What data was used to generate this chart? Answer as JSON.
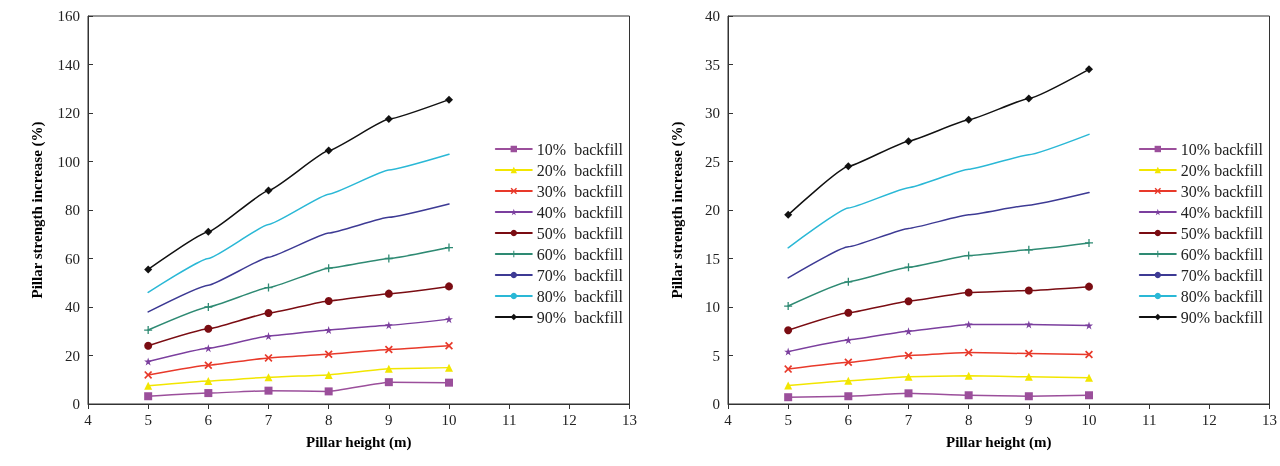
{
  "chart_data": [
    {
      "type": "line",
      "xlabel": "Pillar height (m)",
      "ylabel": "Pillar strength increase (%)",
      "xlim": [
        4,
        13
      ],
      "xticks": [
        4,
        5,
        6,
        7,
        8,
        9,
        10,
        11,
        12,
        13
      ],
      "ylim": [
        0,
        160
      ],
      "yticks": [
        0,
        20,
        40,
        60,
        80,
        100,
        120,
        140,
        160
      ],
      "grid": false,
      "legend": "right",
      "line_style": "solid",
      "x": [
        5,
        6,
        7,
        8,
        9,
        10
      ],
      "series": [
        {
          "name": "10%  backfill",
          "color": "#9b4f9b",
          "marker": "square",
          "values": [
            3.2,
            4.5,
            5.5,
            5.2,
            9,
            8.8
          ]
        },
        {
          "name": "20%  backfill",
          "color": "#f2e600",
          "marker": "triangle",
          "values": [
            7.5,
            9.5,
            11,
            12,
            14.5,
            15
          ]
        },
        {
          "name": "30%  backfill",
          "color": "#e8392a",
          "marker": "cross",
          "values": [
            12,
            16,
            19,
            20.5,
            22.5,
            24
          ]
        },
        {
          "name": "40%  backfill",
          "color": "#7b3f9e",
          "marker": "star",
          "values": [
            17.5,
            23,
            28,
            30.5,
            32.5,
            35
          ]
        },
        {
          "name": "50%  backfill",
          "color": "#7a0c12",
          "marker": "circle",
          "values": [
            24,
            31,
            37.5,
            42.5,
            45.5,
            48.5
          ]
        },
        {
          "name": "60%  backfill",
          "color": "#2e8a73",
          "marker": "cross",
          "values": [
            30.5,
            40,
            48,
            56,
            60,
            64.5
          ]
        },
        {
          "name": "70%  backfill",
          "color": "#3d3a94",
          "marker": "none",
          "values": [
            38,
            49,
            60.5,
            70.5,
            77,
            82.5
          ]
        },
        {
          "name": "80%  backfill",
          "color": "#2ab8d6",
          "marker": "none",
          "values": [
            46,
            60,
            74,
            86.5,
            96.5,
            103
          ]
        },
        {
          "name": "90%  backfill",
          "color": "#111111",
          "marker": "diamond",
          "values": [
            55.5,
            71,
            88,
            104.5,
            117.5,
            125.5
          ]
        }
      ]
    },
    {
      "type": "line",
      "xlabel": "Pillar height (m)",
      "ylabel": "Pillar strength increase (%)",
      "xlim": [
        4,
        13
      ],
      "xticks": [
        4,
        5,
        6,
        7,
        8,
        9,
        10,
        11,
        12,
        13
      ],
      "ylim": [
        0,
        40
      ],
      "yticks": [
        0,
        5,
        10,
        15,
        20,
        25,
        30,
        35,
        40
      ],
      "grid": false,
      "legend": "right",
      "line_style": "solid",
      "x": [
        5,
        6,
        7,
        8,
        9,
        10
      ],
      "series": [
        {
          "name": "10% backfill",
          "color": "#9b4f9b",
          "marker": "square",
          "values": [
            0.7,
            0.8,
            1.1,
            0.9,
            0.8,
            0.9
          ]
        },
        {
          "name": "20% backfill",
          "color": "#f2e600",
          "marker": "triangle",
          "values": [
            1.9,
            2.4,
            2.8,
            2.9,
            2.8,
            2.7
          ]
        },
        {
          "name": "30% backfill",
          "color": "#e8392a",
          "marker": "cross",
          "values": [
            3.6,
            4.3,
            5.0,
            5.3,
            5.2,
            5.1
          ]
        },
        {
          "name": "40% backfill",
          "color": "#7b3f9e",
          "marker": "star",
          "values": [
            5.4,
            6.6,
            7.5,
            8.2,
            8.2,
            8.1
          ]
        },
        {
          "name": "50% backfill",
          "color": "#7a0c12",
          "marker": "circle",
          "values": [
            7.6,
            9.4,
            10.6,
            11.5,
            11.7,
            12.1
          ]
        },
        {
          "name": "60% backfill",
          "color": "#2e8a73",
          "marker": "cross",
          "values": [
            10.1,
            12.6,
            14.1,
            15.3,
            15.9,
            16.6
          ]
        },
        {
          "name": "70% backfill",
          "color": "#3d3a94",
          "marker": "none",
          "values": [
            13.0,
            16.2,
            18.1,
            19.5,
            20.5,
            21.8
          ]
        },
        {
          "name": "80% backfill",
          "color": "#2ab8d6",
          "marker": "none",
          "values": [
            16.1,
            20.2,
            22.3,
            24.2,
            25.7,
            27.8
          ]
        },
        {
          "name": "90% backfill",
          "color": "#111111",
          "marker": "diamond",
          "values": [
            19.5,
            24.5,
            27.1,
            29.3,
            31.5,
            34.5
          ]
        }
      ]
    }
  ]
}
